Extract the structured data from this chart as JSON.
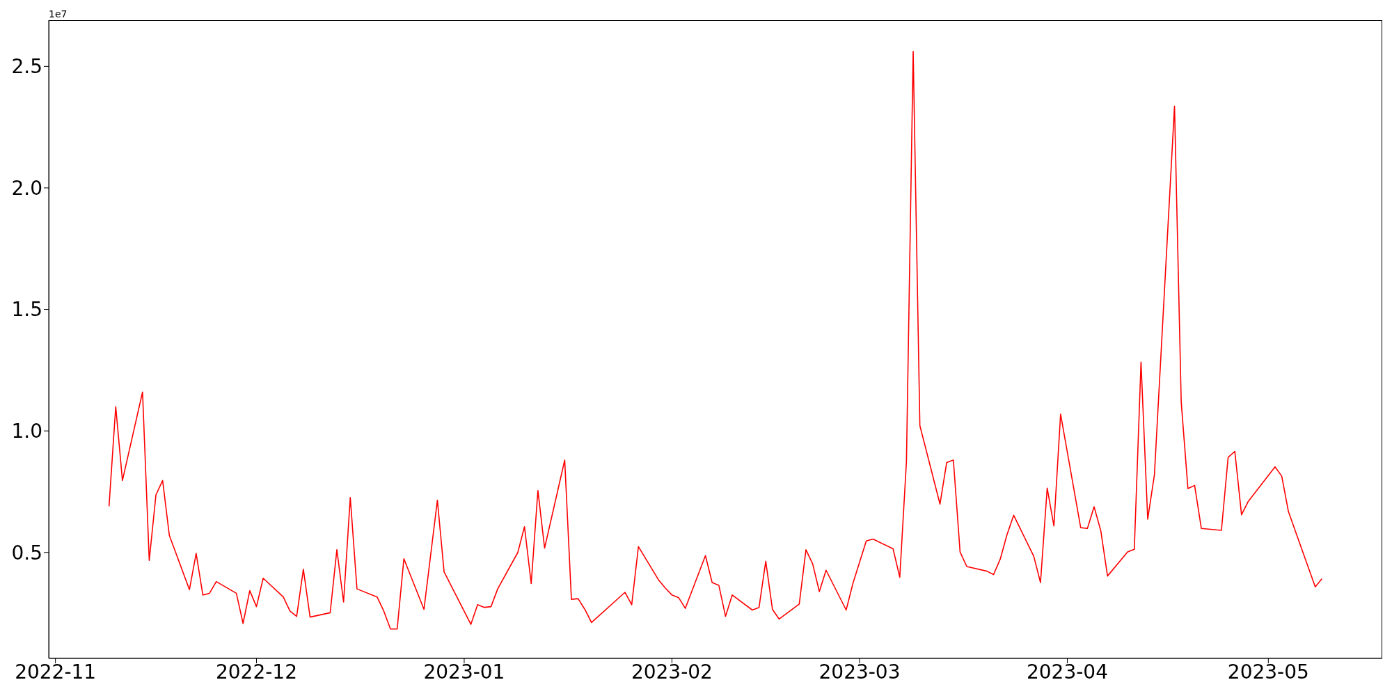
{
  "chart_data": {
    "type": "line",
    "x": [
      "2022-11-09",
      "2022-11-10",
      "2022-11-11",
      "2022-11-14",
      "2022-11-15",
      "2022-11-16",
      "2022-11-17",
      "2022-11-18",
      "2022-11-21",
      "2022-11-22",
      "2022-11-23",
      "2022-11-24",
      "2022-11-25",
      "2022-11-28",
      "2022-11-29",
      "2022-11-30",
      "2022-12-01",
      "2022-12-02",
      "2022-12-05",
      "2022-12-06",
      "2022-12-07",
      "2022-12-08",
      "2022-12-09",
      "2022-12-12",
      "2022-12-13",
      "2022-12-14",
      "2022-12-15",
      "2022-12-16",
      "2022-12-19",
      "2022-12-20",
      "2022-12-21",
      "2022-12-22",
      "2022-12-23",
      "2022-12-26",
      "2022-12-28",
      "2022-12-29",
      "2023-01-02",
      "2023-01-03",
      "2023-01-04",
      "2023-01-05",
      "2023-01-06",
      "2023-01-09",
      "2023-01-10",
      "2023-01-11",
      "2023-01-12",
      "2023-01-13",
      "2023-01-16",
      "2023-01-17",
      "2023-01-18",
      "2023-01-19",
      "2023-01-20",
      "2023-01-25",
      "2023-01-26",
      "2023-01-27",
      "2023-01-30",
      "2023-01-31",
      "2023-02-01",
      "2023-02-02",
      "2023-02-03",
      "2023-02-06",
      "2023-02-07",
      "2023-02-08",
      "2023-02-09",
      "2023-02-10",
      "2023-02-13",
      "2023-02-14",
      "2023-02-15",
      "2023-02-16",
      "2023-02-17",
      "2023-02-20",
      "2023-02-21",
      "2023-02-22",
      "2023-02-23",
      "2023-02-24",
      "2023-02-27",
      "2023-02-28",
      "2023-03-02",
      "2023-03-03",
      "2023-03-06",
      "2023-03-07",
      "2023-03-08",
      "2023-03-09",
      "2023-03-10",
      "2023-03-13",
      "2023-03-14",
      "2023-03-15",
      "2023-03-16",
      "2023-03-17",
      "2023-03-20",
      "2023-03-21",
      "2023-03-22",
      "2023-03-23",
      "2023-03-24",
      "2023-03-27",
      "2023-03-28",
      "2023-03-29",
      "2023-03-30",
      "2023-03-31",
      "2023-04-03",
      "2023-04-04",
      "2023-04-05",
      "2023-04-06",
      "2023-04-07",
      "2023-04-10",
      "2023-04-11",
      "2023-04-12",
      "2023-04-13",
      "2023-04-14",
      "2023-04-17",
      "2023-04-18",
      "2023-04-19",
      "2023-04-20",
      "2023-04-21",
      "2023-04-24",
      "2023-04-25",
      "2023-04-26",
      "2023-04-27",
      "2023-04-28",
      "2023-05-02",
      "2023-05-03",
      "2023-05-04",
      "2023-05-08",
      "2023-05-09"
    ],
    "series": [
      {
        "color": "#ff0000",
        "values": [
          0.69,
          1.1,
          0.796,
          1.16,
          0.467,
          0.737,
          0.796,
          0.57,
          0.347,
          0.496,
          0.325,
          0.332,
          0.38,
          0.332,
          0.208,
          0.343,
          0.277,
          0.394,
          0.317,
          0.259,
          0.237,
          0.431,
          0.234,
          0.252,
          0.511,
          0.296,
          0.726,
          0.35,
          0.317,
          0.259,
          0.185,
          0.185,
          0.474,
          0.266,
          0.715,
          0.42,
          0.204,
          0.285,
          0.274,
          0.277,
          0.35,
          0.5,
          0.606,
          0.372,
          0.755,
          0.518,
          0.88,
          0.307,
          0.31,
          0.266,
          0.212,
          0.336,
          0.285,
          0.524,
          0.387,
          0.354,
          0.325,
          0.314,
          0.27,
          0.487,
          0.376,
          0.365,
          0.237,
          0.325,
          0.263,
          0.274,
          0.464,
          0.266,
          0.226,
          0.288,
          0.511,
          0.453,
          0.339,
          0.427,
          0.263,
          0.372,
          0.547,
          0.555,
          0.515,
          0.398,
          0.876,
          2.562,
          1.022,
          0.699,
          0.87,
          0.88,
          0.502,
          0.442,
          0.423,
          0.409,
          0.473,
          0.573,
          0.653,
          0.484,
          0.376,
          0.765,
          0.609,
          1.069,
          0.602,
          0.599,
          0.688,
          0.589,
          0.403,
          0.502,
          0.513,
          1.283,
          0.637,
          0.819,
          2.336,
          1.119,
          0.763,
          0.776,
          0.599,
          0.591,
          0.891,
          0.916,
          0.655,
          0.71,
          0.852,
          0.814,
          0.668,
          0.358,
          0.392
        ]
      }
    ],
    "xlim": [
      "2022-10-31",
      "2023-05-18"
    ],
    "xticks": [
      {
        "value": "2022-11-01",
        "label": "2022-11"
      },
      {
        "value": "2022-12-01",
        "label": "2022-12"
      },
      {
        "value": "2023-01-01",
        "label": "2023-01"
      },
      {
        "value": "2023-02-01",
        "label": "2023-02"
      },
      {
        "value": "2023-03-01",
        "label": "2023-03"
      },
      {
        "value": "2023-04-01",
        "label": "2023-04"
      },
      {
        "value": "2023-05-01",
        "label": "2023-05"
      }
    ],
    "ylim": [
      0.064,
      2.69
    ],
    "yticks": [
      0.5,
      {
        "value": 1,
        "label": "1.0"
      },
      1.5,
      {
        "value": 2,
        "label": "2.0"
      },
      2.5
    ],
    "annotations": [
      "1e7"
    ],
    "marker": "none",
    "line_style": "solid",
    "grid": false,
    "legend": false
  }
}
